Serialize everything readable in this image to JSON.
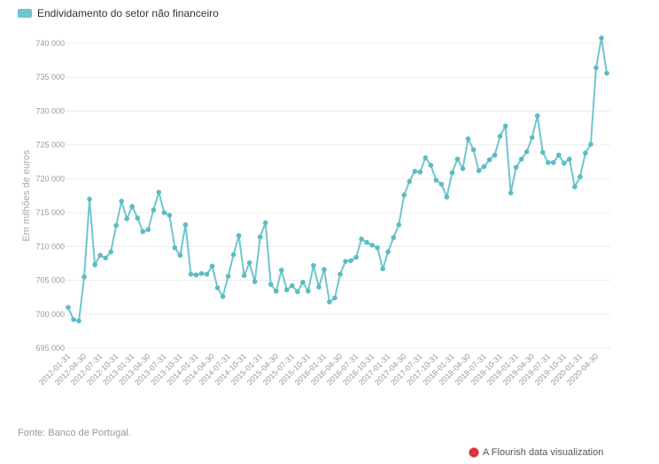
{
  "legend": {
    "label": "Endividamento do setor não financeiro",
    "color": "#6fc6cd"
  },
  "source": "Fonte: Banco de Portugal.",
  "credit": "A Flourish data visualization",
  "colors": {
    "line": "#6fc6cd",
    "point": "#5bbcc4",
    "grid": "#ebebeb"
  },
  "chart_data": {
    "type": "line",
    "title": "",
    "xlabel": "",
    "ylabel": "Em milhões de euros",
    "ylim": [
      695000,
      740000
    ],
    "yticks": [
      695000,
      700000,
      705000,
      710000,
      715000,
      720000,
      725000,
      730000,
      735000,
      740000
    ],
    "ytick_labels": [
      "695 000",
      "700 000",
      "705 000",
      "710 000",
      "715 000",
      "720 000",
      "725 000",
      "730 000",
      "735 000",
      "740 000"
    ],
    "grid": true,
    "xtick_labels": [
      "2012-01-31",
      "2012-04-30",
      "2012-07-31",
      "2012-10-31",
      "2013-01-31",
      "2013-04-30",
      "2013-07-31",
      "2013-10-31",
      "2014-01-31",
      "2014-04-30",
      "2014-07-31",
      "2014-10-31",
      "2015-01-31",
      "2015-04-30",
      "2015-07-31",
      "2015-10-31",
      "2016-01-31",
      "2016-04-30",
      "2016-07-31",
      "2016-10-31",
      "2017-01-31",
      "2017-04-30",
      "2017-07-31",
      "2017-10-31",
      "2018-01-31",
      "2018-04-30",
      "2018-07-31",
      "2018-10-31",
      "2019-01-31",
      "2019-04-30",
      "2019-07-31",
      "2019-10-31",
      "2020-01-31",
      "2020-04-30"
    ],
    "series": [
      {
        "name": "Endividamento do setor não financeiro",
        "x_start": "2012-01-31",
        "frequency": "monthly",
        "values": [
          701000,
          699200,
          699000,
          705500,
          717000,
          707300,
          708700,
          708300,
          709200,
          713100,
          716700,
          714100,
          715900,
          714200,
          712200,
          712500,
          715400,
          718000,
          715000,
          714600,
          709800,
          708700,
          713200,
          705900,
          705800,
          706000,
          705900,
          707100,
          703900,
          702600,
          705600,
          708800,
          711600,
          705700,
          707600,
          704800,
          711400,
          713500,
          704400,
          703400,
          706500,
          703600,
          704200,
          703300,
          704700,
          703400,
          707200,
          704000,
          706600,
          701800,
          702400,
          705900,
          707800,
          707900,
          708400,
          711100,
          710600,
          710200,
          709800,
          706700,
          709200,
          711300,
          713200,
          717600,
          719600,
          721100,
          721000,
          723100,
          722000,
          719800,
          719200,
          717300,
          720900,
          722900,
          721500,
          725900,
          724300,
          721200,
          721800,
          722800,
          723500,
          726300,
          727800,
          717900,
          721700,
          722900,
          724000,
          726100,
          729300,
          723900,
          722400,
          722400,
          723500,
          722300,
          722900,
          718800,
          720300,
          723800,
          725100,
          736400,
          740800,
          735600
        ]
      }
    ]
  }
}
